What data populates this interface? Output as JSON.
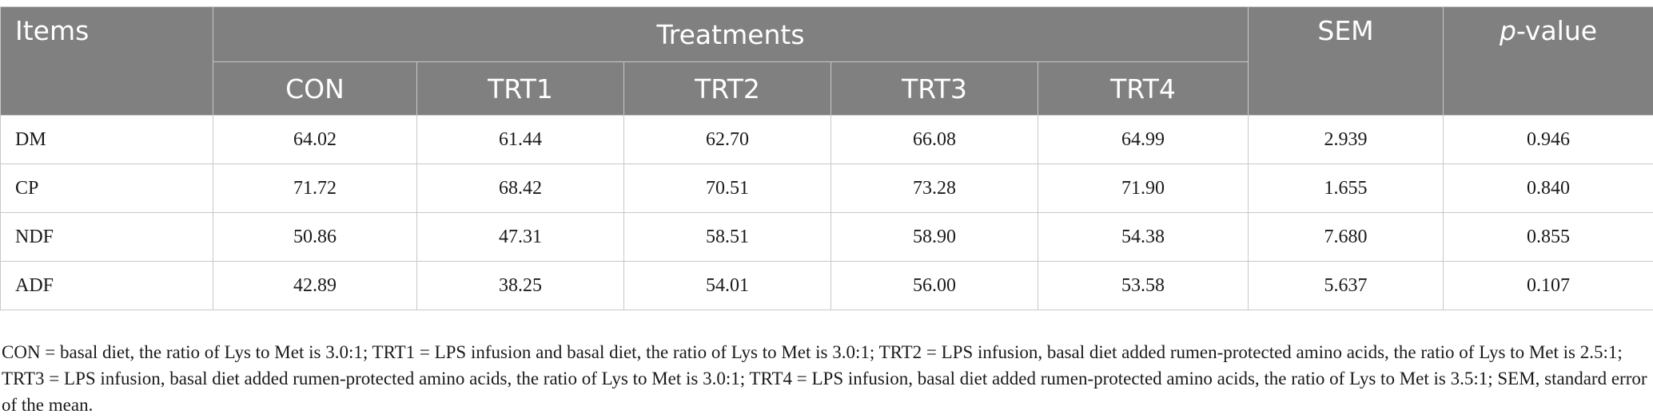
{
  "table": {
    "header": {
      "items": "Items",
      "treatments": "Treatments",
      "sem": "SEM",
      "pvalue_italic": "p",
      "pvalue_rest": "-value",
      "sub": [
        "CON",
        "TRT1",
        "TRT2",
        "TRT3",
        "TRT4"
      ]
    },
    "rows": [
      {
        "label": "DM",
        "values": [
          "64.02",
          "61.44",
          "62.70",
          "66.08",
          "64.99"
        ],
        "sem": "2.939",
        "p": "0.946"
      },
      {
        "label": "CP",
        "values": [
          "71.72",
          "68.42",
          "70.51",
          "73.28",
          "71.90"
        ],
        "sem": "1.655",
        "p": "0.840"
      },
      {
        "label": "NDF",
        "values": [
          "50.86",
          "47.31",
          "58.51",
          "58.90",
          "54.38"
        ],
        "sem": "7.680",
        "p": "0.855"
      },
      {
        "label": "ADF",
        "values": [
          "42.89",
          "38.25",
          "54.01",
          "56.00",
          "53.58"
        ],
        "sem": "5.637",
        "p": "0.107"
      }
    ]
  },
  "footnote": "CON = basal diet, the ratio of Lys to Met is 3.0:1; TRT1 = LPS infusion and basal diet, the ratio of Lys to Met is 3.0:1; TRT2 = LPS infusion, basal diet added rumen-protected amino acids, the ratio of Lys to Met is 2.5:1; TRT3 = LPS infusion, basal diet added rumen-protected amino acids, the ratio of Lys to Met is 3.0:1; TRT4 = LPS infusion, basal diet added rumen-protected amino acids, the ratio of Lys to Met is 3.5:1; SEM, standard error of the mean."
}
